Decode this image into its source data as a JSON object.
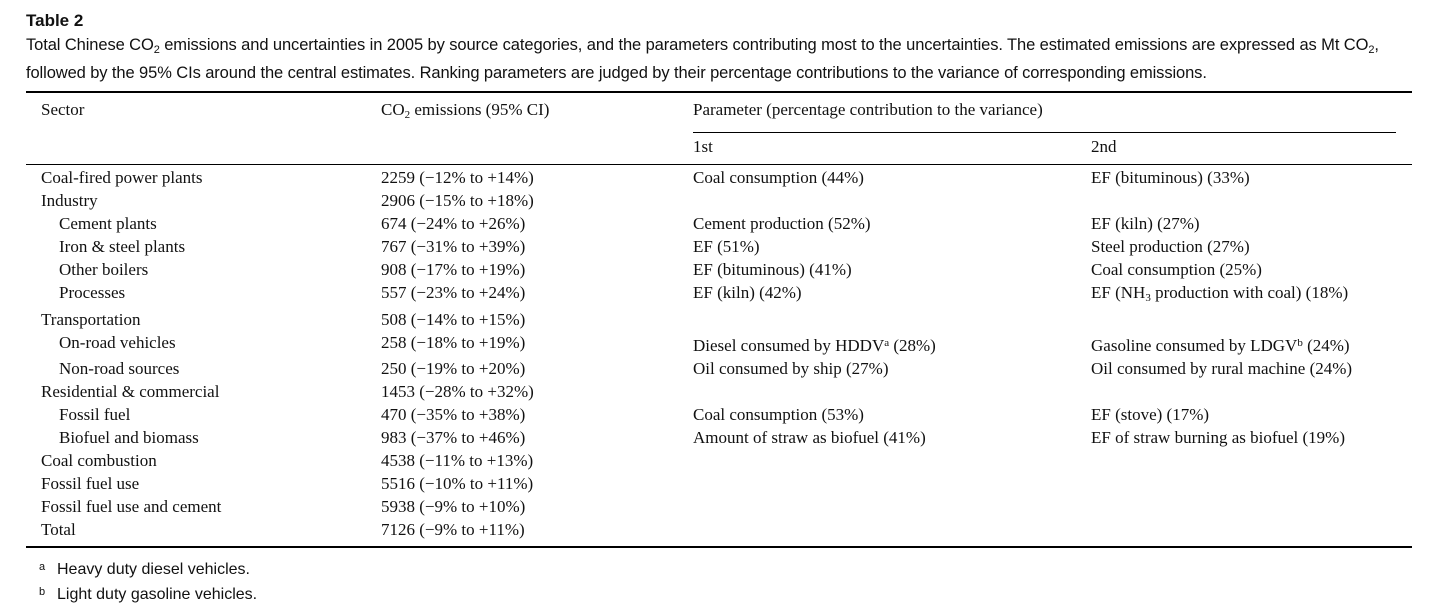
{
  "title": "Table 2",
  "caption": {
    "part1": "Total Chinese CO",
    "sub": "2",
    "part2": " emissions and uncertainties in 2005 by source categories, and the parameters contributing most to the uncertainties. The estimated emissions are expressed as Mt CO",
    "sub2": "2",
    "part3": ", followed by the 95% CIs around the central estimates. Ranking parameters are judged by their percentage contributions to the variance of corresponding emissions."
  },
  "headers": {
    "sector": "Sector",
    "emissions_pre": "CO",
    "emissions_sub": "2",
    "emissions_post": " emissions (95% CI)",
    "parameter": "Parameter (percentage contribution to the variance)",
    "first": "1st",
    "second": "2nd"
  },
  "rows": [
    {
      "sector": "Coal-fired power plants",
      "emissions": "2259 (−12% to +14%)",
      "first": "Coal consumption (44%)",
      "second": "EF (bituminous) (33%)"
    },
    {
      "sector": "Industry",
      "emissions": "2906 (−15% to +18%)",
      "first": "",
      "second": ""
    },
    {
      "sector": "Cement plants",
      "emissions": "674 (−24% to +26%)",
      "first": "Cement production (52%)",
      "second": "EF (kiln) (27%)"
    },
    {
      "sector": "Iron & steel plants",
      "emissions": "767 (−31% to +39%)",
      "first": "EF (51%)",
      "second": "Steel production (27%)"
    },
    {
      "sector": "Other boilers",
      "emissions": "908 (−17% to +19%)",
      "first": "EF (bituminous) (41%)",
      "second": "Coal consumption (25%)"
    },
    {
      "sector": "Processes",
      "emissions": "557 (−23% to +24%)",
      "first": "EF (kiln) (42%)",
      "second_pre": "EF (NH",
      "second_sub": "3",
      "second_post": " production with coal) (18%)"
    },
    {
      "sector": "Transportation",
      "emissions": "508 (−14% to +15%)",
      "first": "",
      "second": ""
    },
    {
      "sector": "On-road vehicles",
      "emissions": "258 (−18% to +19%)",
      "first_pre": "Diesel consumed by HDDV",
      "first_sup": "a",
      "first_post": " (28%)",
      "second_pre": "Gasoline consumed by LDGV",
      "second_sup": "b",
      "second_post": " (24%)"
    },
    {
      "sector": "Non-road sources",
      "emissions": "250 (−19% to +20%)",
      "first": "Oil consumed by ship (27%)",
      "second": "Oil consumed by rural machine (24%)"
    },
    {
      "sector": "Residential & commercial",
      "emissions": "1453 (−28% to +32%)",
      "first": "",
      "second": ""
    },
    {
      "sector": "Fossil fuel",
      "emissions": "470 (−35% to +38%)",
      "first": "Coal consumption (53%)",
      "second": "EF (stove) (17%)"
    },
    {
      "sector": "Biofuel and biomass",
      "emissions": "983 (−37% to +46%)",
      "first": "Amount of straw as biofuel (41%)",
      "second": "EF of straw burning as biofuel (19%)"
    },
    {
      "sector": "Coal combustion",
      "emissions": "4538 (−11% to +13%)",
      "first": "",
      "second": ""
    },
    {
      "sector": "Fossil fuel use",
      "emissions": "5516 (−10% to +11%)",
      "first": "",
      "second": ""
    },
    {
      "sector": "Fossil fuel use and cement",
      "emissions": "5938 (−9% to +10%)",
      "first": "",
      "second": ""
    },
    {
      "sector": "Total",
      "emissions": "7126 (−9% to +11%)",
      "first": "",
      "second": ""
    }
  ],
  "footnotes": [
    {
      "mark": "a",
      "text": "Heavy duty diesel vehicles."
    },
    {
      "mark": "b",
      "text": "Light duty gasoline vehicles."
    }
  ]
}
